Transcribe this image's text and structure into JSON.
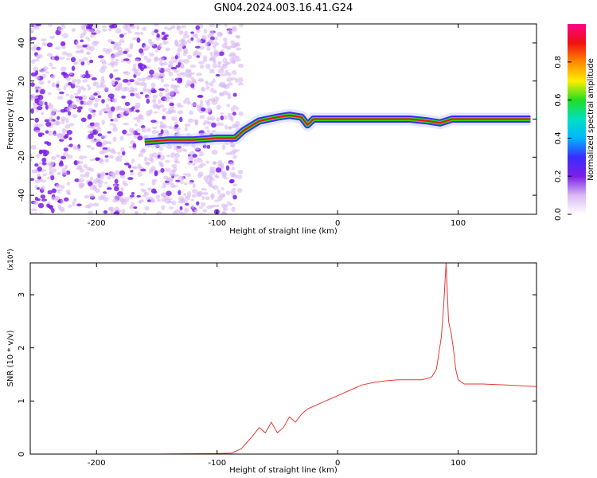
{
  "title": "GN04.2024.003.16.41.G24",
  "colors": {
    "snr_line": "#e53935",
    "tone": "#7b1fe8",
    "axis": "#000000",
    "background": "#ffffff"
  },
  "chart_data": [
    {
      "type": "heatmap",
      "title": "GN04.2024.003.16.41.G24",
      "xlabel": "Height of straight line (km)",
      "ylabel": "Frequency (Hz)",
      "xlim": [
        -255,
        165
      ],
      "ylim": [
        -50,
        50
      ],
      "x_ticks": [
        "-200",
        "-100",
        "0",
        "100"
      ],
      "y_ticks": [
        "-40",
        "-20",
        "0",
        "20",
        "40"
      ],
      "colorbar": {
        "label": "Normalized spectral amplitude",
        "range": [
          0,
          1
        ],
        "ticks": [
          "0.0",
          "0.2",
          "0.4",
          "0.6",
          "0.8"
        ],
        "colors": [
          "#ffffff",
          "#d9b8f2",
          "#7b1fe8",
          "#3a2cff",
          "#00b7ff",
          "#00e0c0",
          "#22dd22",
          "#ffee00",
          "#ff8800",
          "#ee1111",
          "#ff0088"
        ]
      },
      "frequency_track": {
        "x_km": [
          -160,
          -140,
          -120,
          -100,
          -85,
          -78,
          -65,
          -50,
          -40,
          -30,
          -25,
          -20,
          -10,
          0,
          20,
          40,
          60,
          75,
          85,
          95,
          110,
          130,
          160
        ],
        "freq_hz": [
          -12,
          -11,
          -11,
          -10,
          -10,
          -6,
          -1,
          1,
          2,
          1,
          -3,
          0,
          0,
          0,
          0,
          0,
          0,
          -1,
          -2,
          0,
          0,
          0,
          0
        ]
      }
    },
    {
      "type": "line",
      "title": "",
      "xlabel": "Height of straight line (km)",
      "ylabel": "SNR (10 * v/v)",
      "y_multiplier": "(x10⁴)",
      "xlim": [
        -255,
        165
      ],
      "ylim": [
        0,
        3.6
      ],
      "x_ticks": [
        "-200",
        "-100",
        "0",
        "100"
      ],
      "y_ticks": [
        "0",
        "1",
        "2",
        "3"
      ],
      "series": [
        {
          "x": [
            -255,
            -200,
            -150,
            -100,
            -88,
            -80,
            -72,
            -65,
            -60,
            -55,
            -50,
            -45,
            -40,
            -35,
            -30,
            -25,
            -20,
            -15,
            -10,
            -5,
            0,
            10,
            20,
            30,
            40,
            50,
            60,
            70,
            78,
            82,
            86,
            88,
            90,
            92,
            94,
            96,
            98,
            100,
            105,
            120,
            140,
            165
          ],
          "y": [
            0.0,
            0.0,
            0.0,
            0.01,
            0.02,
            0.1,
            0.3,
            0.5,
            0.4,
            0.6,
            0.4,
            0.5,
            0.7,
            0.6,
            0.75,
            0.85,
            0.9,
            0.95,
            1.0,
            1.05,
            1.1,
            1.2,
            1.3,
            1.35,
            1.38,
            1.4,
            1.4,
            1.4,
            1.45,
            1.6,
            2.2,
            2.8,
            3.6,
            2.5,
            2.3,
            2.0,
            1.6,
            1.4,
            1.32,
            1.32,
            1.3,
            1.27
          ]
        }
      ]
    }
  ]
}
